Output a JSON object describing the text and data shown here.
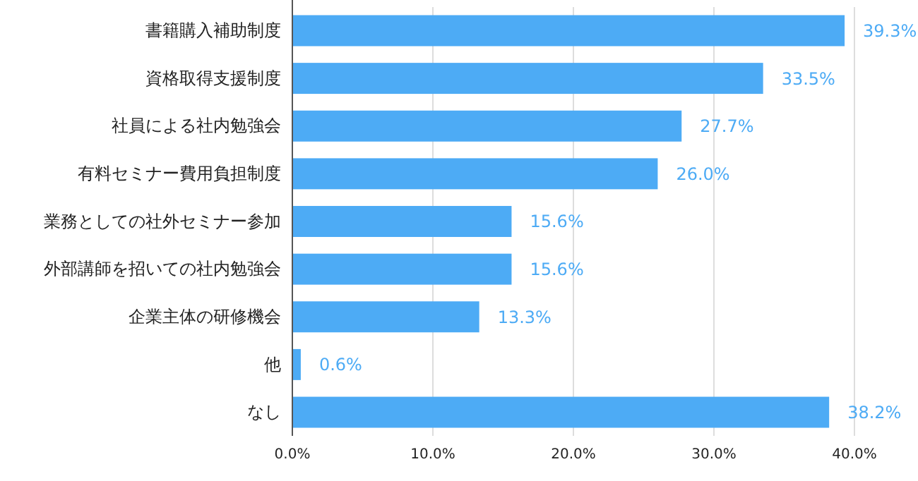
{
  "chart_data": {
    "type": "bar",
    "orientation": "horizontal",
    "categories": [
      "書籍購入補助制度",
      "資格取得支援制度",
      "社員による社内勉強会",
      "有料セミナー費用負担制度",
      "業務としての社外セミナー参加",
      "外部講師を招いての社内勉強会",
      "企業主体の研修機会",
      "他",
      "なし"
    ],
    "values": [
      39.3,
      33.5,
      27.7,
      26.0,
      15.6,
      15.6,
      13.3,
      0.6,
      38.2
    ],
    "value_labels": [
      "39.3%",
      "33.5%",
      "27.7%",
      "26.0%",
      "15.6%",
      "15.6%",
      "13.3%",
      "0.6%",
      "38.2%"
    ],
    "color": "#4dabf5",
    "xlim": [
      0,
      40
    ],
    "xticks": [
      {
        "value": 0,
        "label": "0.0%"
      },
      {
        "value": 10,
        "label": "10.0%"
      },
      {
        "value": 20,
        "label": "20.0%"
      },
      {
        "value": 30,
        "label": "30.0%"
      },
      {
        "value": 40,
        "label": "40.0%"
      }
    ],
    "grid": "x"
  }
}
